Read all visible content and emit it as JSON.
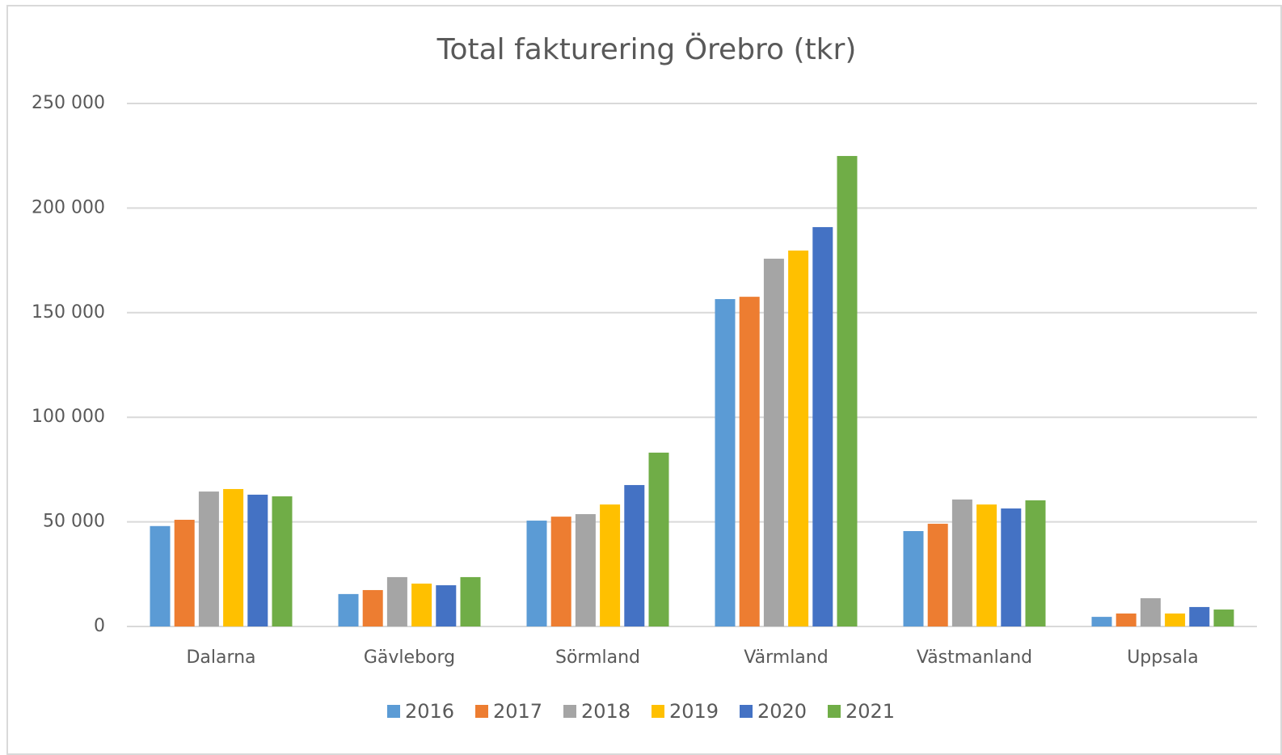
{
  "chart_data": {
    "type": "bar",
    "title": "Total fakturering Örebro (tkr)",
    "categories": [
      "Dalarna",
      "Gävleborg",
      "Sörmland",
      "Värmland",
      "Västmanland",
      "Uppsala"
    ],
    "series": [
      {
        "name": "2016",
        "color": "#5b9bd5",
        "values": [
          48000,
          15500,
          50600,
          156500,
          45600,
          4600
        ]
      },
      {
        "name": "2017",
        "color": "#ed7d31",
        "values": [
          51000,
          17400,
          52500,
          157600,
          49100,
          6200
        ]
      },
      {
        "name": "2018",
        "color": "#a5a5a5",
        "values": [
          64500,
          23600,
          53700,
          175800,
          60700,
          13500
        ]
      },
      {
        "name": "2019",
        "color": "#ffc000",
        "values": [
          65700,
          20500,
          58300,
          179700,
          58300,
          6200
        ]
      },
      {
        "name": "2020",
        "color": "#4472c4",
        "values": [
          63000,
          19700,
          67600,
          190900,
          56400,
          9300
        ]
      },
      {
        "name": "2021",
        "color": "#70ad47",
        "values": [
          62200,
          23600,
          83100,
          224900,
          60300,
          8100
        ]
      }
    ],
    "ylim": [
      0,
      250000
    ],
    "yticks": [
      0,
      {
        "value": 50000,
        "label": "50 000"
      },
      {
        "value": 100000,
        "label": "100 000"
      },
      {
        "value": 150000,
        "label": "150 000"
      },
      {
        "value": 200000,
        "label": "200 000"
      },
      {
        "value": 250000,
        "label": "250 000"
      }
    ],
    "grid": true,
    "legend": "bottom"
  }
}
